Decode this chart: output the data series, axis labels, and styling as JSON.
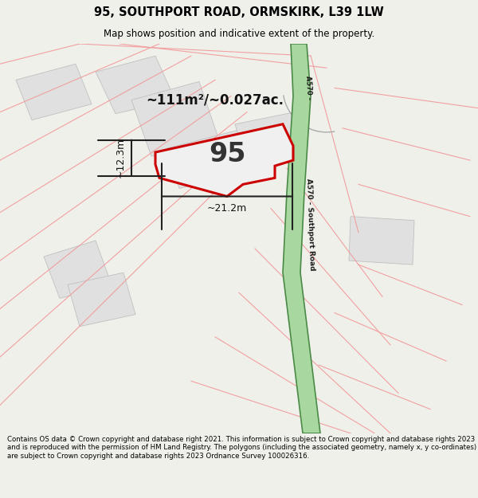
{
  "title": "95, SOUTHPORT ROAD, ORMSKIRK, L39 1LW",
  "subtitle": "Map shows position and indicative extent of the property.",
  "footer": "Contains OS data © Crown copyright and database right 2021. This information is subject to Crown copyright and database rights 2023 and is reproduced with the permission of HM Land Registry. The polygons (including the associated geometry, namely x, y co-ordinates) are subject to Crown copyright and database rights 2023 Ordnance Survey 100026316.",
  "area_label": "~111m²/~0.027ac.",
  "width_label": "~21.2m",
  "height_label": "~12.3m",
  "property_number": "95",
  "road_color": "#a8d8a0",
  "road_border_color": "#4a8a47",
  "road_label_top": "A570 -",
  "road_label_main": "A570 - Southport Road",
  "red_outline_color": "#cc0000",
  "gray_parcel_fill": "#e0e0e0",
  "gray_parcel_edge": "#c0c0c0",
  "pink_line_color": "#f0a0a0",
  "dark_line_color": "#222222",
  "bg_color": "#f0f0eb",
  "map_bg": "#ffffff"
}
